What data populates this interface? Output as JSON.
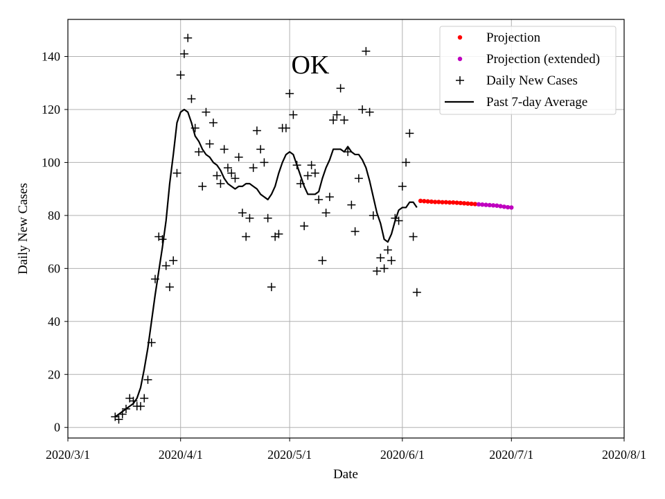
{
  "chart_data": {
    "type": "line+scatter",
    "title": "OK",
    "xlabel": "Date",
    "ylabel": "Daily New Cases",
    "x_axis": {
      "start": "2020-03-01",
      "end": "2020-08-01",
      "ticks": [
        {
          "date": "2020-03-01",
          "label": "2020/3/1"
        },
        {
          "date": "2020-04-01",
          "label": "2020/4/1"
        },
        {
          "date": "2020-05-01",
          "label": "2020/5/1"
        },
        {
          "date": "2020-06-01",
          "label": "2020/6/1"
        },
        {
          "date": "2020-07-01",
          "label": "2020/7/1"
        },
        {
          "date": "2020-08-01",
          "label": "2020/8/1"
        }
      ]
    },
    "ylim": [
      -4,
      154
    ],
    "yticks": [
      0,
      20,
      40,
      60,
      80,
      100,
      120,
      140
    ],
    "grid": true,
    "legend_position": "top-right",
    "series": [
      {
        "name": "Daily New Cases",
        "kind": "markers-plus",
        "color": "#000000",
        "points": [
          [
            "2020-03-14",
            4
          ],
          [
            "2020-03-15",
            3
          ],
          [
            "2020-03-16",
            5
          ],
          [
            "2020-03-17",
            7
          ],
          [
            "2020-03-18",
            11
          ],
          [
            "2020-03-19",
            10
          ],
          [
            "2020-03-20",
            8
          ],
          [
            "2020-03-21",
            8
          ],
          [
            "2020-03-22",
            11
          ],
          [
            "2020-03-23",
            18
          ],
          [
            "2020-03-24",
            32
          ],
          [
            "2020-03-25",
            56
          ],
          [
            "2020-03-26",
            72
          ],
          [
            "2020-03-27",
            71
          ],
          [
            "2020-03-28",
            61
          ],
          [
            "2020-03-29",
            53
          ],
          [
            "2020-03-30",
            63
          ],
          [
            "2020-03-31",
            96
          ],
          [
            "2020-04-01",
            133
          ],
          [
            "2020-04-02",
            141
          ],
          [
            "2020-04-03",
            147
          ],
          [
            "2020-04-04",
            124
          ],
          [
            "2020-04-05",
            113
          ],
          [
            "2020-04-06",
            104
          ],
          [
            "2020-04-07",
            91
          ],
          [
            "2020-04-08",
            119
          ],
          [
            "2020-04-09",
            107
          ],
          [
            "2020-04-10",
            115
          ],
          [
            "2020-04-11",
            95
          ],
          [
            "2020-04-12",
            92
          ],
          [
            "2020-04-13",
            105
          ],
          [
            "2020-04-14",
            98
          ],
          [
            "2020-04-15",
            96
          ],
          [
            "2020-04-16",
            94
          ],
          [
            "2020-04-17",
            102
          ],
          [
            "2020-04-18",
            81
          ],
          [
            "2020-04-19",
            72
          ],
          [
            "2020-04-20",
            79
          ],
          [
            "2020-04-21",
            98
          ],
          [
            "2020-04-22",
            112
          ],
          [
            "2020-04-23",
            105
          ],
          [
            "2020-04-24",
            100
          ],
          [
            "2020-04-25",
            79
          ],
          [
            "2020-04-26",
            53
          ],
          [
            "2020-04-27",
            72
          ],
          [
            "2020-04-28",
            73
          ],
          [
            "2020-04-29",
            113
          ],
          [
            "2020-04-30",
            113
          ],
          [
            "2020-05-01",
            126
          ],
          [
            "2020-05-02",
            118
          ],
          [
            "2020-05-03",
            99
          ],
          [
            "2020-05-04",
            92
          ],
          [
            "2020-05-05",
            76
          ],
          [
            "2020-05-06",
            95
          ],
          [
            "2020-05-07",
            99
          ],
          [
            "2020-05-08",
            96
          ],
          [
            "2020-05-09",
            86
          ],
          [
            "2020-05-10",
            63
          ],
          [
            "2020-05-11",
            81
          ],
          [
            "2020-05-12",
            87
          ],
          [
            "2020-05-13",
            116
          ],
          [
            "2020-05-14",
            118
          ],
          [
            "2020-05-15",
            128
          ],
          [
            "2020-05-16",
            116
          ],
          [
            "2020-05-17",
            104
          ],
          [
            "2020-05-18",
            84
          ],
          [
            "2020-05-19",
            74
          ],
          [
            "2020-05-20",
            94
          ],
          [
            "2020-05-21",
            120
          ],
          [
            "2020-05-22",
            142
          ],
          [
            "2020-05-23",
            119
          ],
          [
            "2020-05-24",
            80
          ],
          [
            "2020-05-25",
            59
          ],
          [
            "2020-05-26",
            64
          ],
          [
            "2020-05-27",
            60
          ],
          [
            "2020-05-28",
            67
          ],
          [
            "2020-05-29",
            63
          ],
          [
            "2020-05-30",
            79
          ],
          [
            "2020-05-31",
            78
          ],
          [
            "2020-06-01",
            91
          ],
          [
            "2020-06-02",
            100
          ],
          [
            "2020-06-03",
            111
          ],
          [
            "2020-06-04",
            72
          ],
          [
            "2020-06-05",
            51
          ]
        ]
      },
      {
        "name": "Past 7-day Average",
        "kind": "line",
        "color": "#000000",
        "points": [
          [
            "2020-03-14",
            4
          ],
          [
            "2020-03-15",
            5
          ],
          [
            "2020-03-16",
            6
          ],
          [
            "2020-03-17",
            7
          ],
          [
            "2020-03-18",
            8
          ],
          [
            "2020-03-19",
            9
          ],
          [
            "2020-03-20",
            11
          ],
          [
            "2020-03-21",
            15
          ],
          [
            "2020-03-22",
            22
          ],
          [
            "2020-03-23",
            30
          ],
          [
            "2020-03-24",
            40
          ],
          [
            "2020-03-25",
            50
          ],
          [
            "2020-03-26",
            59
          ],
          [
            "2020-03-27",
            68
          ],
          [
            "2020-03-28",
            78
          ],
          [
            "2020-03-29",
            92
          ],
          [
            "2020-03-30",
            103
          ],
          [
            "2020-03-31",
            115
          ],
          [
            "2020-04-01",
            119
          ],
          [
            "2020-04-02",
            120
          ],
          [
            "2020-04-03",
            119
          ],
          [
            "2020-04-04",
            115
          ],
          [
            "2020-04-05",
            110
          ],
          [
            "2020-04-06",
            108
          ],
          [
            "2020-04-07",
            105
          ],
          [
            "2020-04-08",
            103
          ],
          [
            "2020-04-09",
            102
          ],
          [
            "2020-04-10",
            100
          ],
          [
            "2020-04-11",
            99
          ],
          [
            "2020-04-12",
            97
          ],
          [
            "2020-04-13",
            94
          ],
          [
            "2020-04-14",
            92
          ],
          [
            "2020-04-15",
            91
          ],
          [
            "2020-04-16",
            90
          ],
          [
            "2020-04-17",
            91
          ],
          [
            "2020-04-18",
            91
          ],
          [
            "2020-04-19",
            92
          ],
          [
            "2020-04-20",
            92
          ],
          [
            "2020-04-21",
            91
          ],
          [
            "2020-04-22",
            90
          ],
          [
            "2020-04-23",
            88
          ],
          [
            "2020-04-24",
            87
          ],
          [
            "2020-04-25",
            86
          ],
          [
            "2020-04-26",
            88
          ],
          [
            "2020-04-27",
            91
          ],
          [
            "2020-04-28",
            96
          ],
          [
            "2020-04-29",
            100
          ],
          [
            "2020-04-30",
            103
          ],
          [
            "2020-05-01",
            104
          ],
          [
            "2020-05-02",
            103
          ],
          [
            "2020-05-03",
            99
          ],
          [
            "2020-05-04",
            95
          ],
          [
            "2020-05-05",
            91
          ],
          [
            "2020-05-06",
            88
          ],
          [
            "2020-05-07",
            88
          ],
          [
            "2020-05-08",
            88
          ],
          [
            "2020-05-09",
            89
          ],
          [
            "2020-05-10",
            94
          ],
          [
            "2020-05-11",
            98
          ],
          [
            "2020-05-12",
            101
          ],
          [
            "2020-05-13",
            105
          ],
          [
            "2020-05-14",
            105
          ],
          [
            "2020-05-15",
            105
          ],
          [
            "2020-05-16",
            104
          ],
          [
            "2020-05-17",
            106
          ],
          [
            "2020-05-18",
            104
          ],
          [
            "2020-05-19",
            103
          ],
          [
            "2020-05-20",
            103
          ],
          [
            "2020-05-21",
            101
          ],
          [
            "2020-05-22",
            98
          ],
          [
            "2020-05-23",
            93
          ],
          [
            "2020-05-24",
            87
          ],
          [
            "2020-05-25",
            81
          ],
          [
            "2020-05-26",
            77
          ],
          [
            "2020-05-27",
            71
          ],
          [
            "2020-05-28",
            70
          ],
          [
            "2020-05-29",
            73
          ],
          [
            "2020-05-30",
            78
          ],
          [
            "2020-05-31",
            82
          ],
          [
            "2020-06-01",
            83
          ],
          [
            "2020-06-02",
            83
          ],
          [
            "2020-06-03",
            85
          ],
          [
            "2020-06-04",
            85
          ],
          [
            "2020-06-05",
            83
          ]
        ]
      },
      {
        "name": "Projection",
        "kind": "markers-dot",
        "color": "#ff0000",
        "points": [
          [
            "2020-06-06",
            85.5
          ],
          [
            "2020-06-07",
            85.4
          ],
          [
            "2020-06-08",
            85.3
          ],
          [
            "2020-06-09",
            85.2
          ],
          [
            "2020-06-10",
            85.1
          ],
          [
            "2020-06-11",
            85.1
          ],
          [
            "2020-06-12",
            85.0
          ],
          [
            "2020-06-13",
            85.0
          ],
          [
            "2020-06-14",
            84.9
          ],
          [
            "2020-06-15",
            84.9
          ],
          [
            "2020-06-16",
            84.8
          ],
          [
            "2020-06-17",
            84.7
          ],
          [
            "2020-06-18",
            84.6
          ],
          [
            "2020-06-19",
            84.5
          ],
          [
            "2020-06-20",
            84.4
          ],
          [
            "2020-06-21",
            84.3
          ]
        ]
      },
      {
        "name": "Projection (extended)",
        "kind": "markers-dot",
        "color": "#bf00bf",
        "points": [
          [
            "2020-06-22",
            84.2
          ],
          [
            "2020-06-23",
            84.1
          ],
          [
            "2020-06-24",
            84.0
          ],
          [
            "2020-06-25",
            83.9
          ],
          [
            "2020-06-26",
            83.8
          ],
          [
            "2020-06-27",
            83.7
          ],
          [
            "2020-06-28",
            83.5
          ],
          [
            "2020-06-29",
            83.3
          ],
          [
            "2020-06-30",
            83.1
          ],
          [
            "2020-07-01",
            83.0
          ]
        ]
      }
    ],
    "legend": [
      {
        "label": "Projection",
        "marker": "dot",
        "color": "#ff0000"
      },
      {
        "label": "Projection (extended)",
        "marker": "dot",
        "color": "#bf00bf"
      },
      {
        "label": "Daily New Cases",
        "marker": "plus",
        "color": "#000000"
      },
      {
        "label": "Past 7-day Average",
        "marker": "line",
        "color": "#000000"
      }
    ]
  }
}
